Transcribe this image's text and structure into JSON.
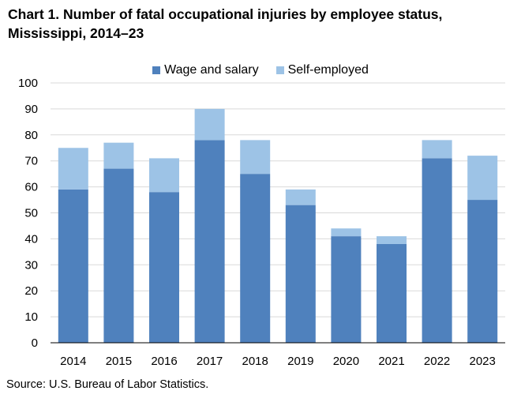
{
  "chart_data": {
    "type": "bar",
    "stacked": true,
    "title": [
      "Chart 1. Number of fatal occupational injuries by employee status,",
      "Mississippi,  2014–23"
    ],
    "categories": [
      "2014",
      "2015",
      "2016",
      "2017",
      "2018",
      "2019",
      "2020",
      "2021",
      "2022",
      "2023"
    ],
    "series": [
      {
        "name": "Wage and salary",
        "color": "#4f81bd",
        "values": [
          59,
          67,
          58,
          78,
          65,
          53,
          41,
          38,
          71,
          55
        ]
      },
      {
        "name": "Self-employed",
        "color": "#9dc3e6",
        "values": [
          16,
          10,
          13,
          12,
          13,
          6,
          3,
          3,
          7,
          17
        ]
      }
    ],
    "ylim": [
      0,
      100
    ],
    "yticks": [
      "0",
      "10",
      "20",
      "30",
      "40",
      "50",
      "60",
      "70",
      "80",
      "90",
      "100"
    ],
    "grid": true,
    "legend_position": "top-center",
    "source": "Source: U.S. Bureau of Labor Statistics."
  }
}
